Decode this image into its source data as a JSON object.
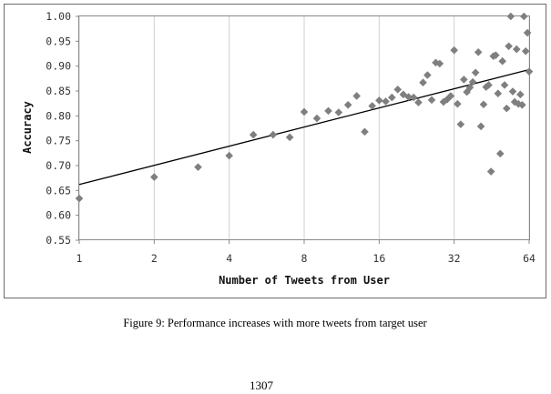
{
  "chart_data": {
    "type": "scatter",
    "title": "",
    "xlabel": "Number of Tweets from User",
    "ylabel": "Accuracy",
    "x_scale": "log2",
    "xlim": [
      1,
      64
    ],
    "ylim": [
      0.55,
      1.0
    ],
    "x_ticks": [
      "1",
      "2",
      "4",
      "8",
      "16",
      "32",
      "64"
    ],
    "x_tick_values": [
      1,
      2,
      4,
      8,
      16,
      32,
      64
    ],
    "y_ticks": [
      "0.55",
      "0.60",
      "0.65",
      "0.70",
      "0.75",
      "0.80",
      "0.85",
      "0.90",
      "0.95",
      "1.00"
    ],
    "y_tick_values": [
      0.55,
      0.6,
      0.65,
      0.7,
      0.75,
      0.8,
      0.85,
      0.9,
      0.95,
      1.0
    ],
    "grid": "vertical",
    "marker": "diamond",
    "point_color": "#7f7f7f",
    "trend_color": "#000000",
    "trendline": {
      "x": [
        1,
        64
      ],
      "y": [
        0.662,
        0.893
      ]
    },
    "points": [
      {
        "x": 1,
        "y": 0.634
      },
      {
        "x": 2,
        "y": 0.677
      },
      {
        "x": 3,
        "y": 0.697
      },
      {
        "x": 4,
        "y": 0.72
      },
      {
        "x": 5,
        "y": 0.762
      },
      {
        "x": 6,
        "y": 0.762
      },
      {
        "x": 7,
        "y": 0.757
      },
      {
        "x": 8,
        "y": 0.808
      },
      {
        "x": 9,
        "y": 0.795
      },
      {
        "x": 10,
        "y": 0.81
      },
      {
        "x": 11,
        "y": 0.807
      },
      {
        "x": 12,
        "y": 0.822
      },
      {
        "x": 13,
        "y": 0.84
      },
      {
        "x": 14,
        "y": 0.768
      },
      {
        "x": 15,
        "y": 0.82
      },
      {
        "x": 16,
        "y": 0.831
      },
      {
        "x": 17,
        "y": 0.829
      },
      {
        "x": 18,
        "y": 0.837
      },
      {
        "x": 19,
        "y": 0.853
      },
      {
        "x": 20,
        "y": 0.843
      },
      {
        "x": 21,
        "y": 0.838
      },
      {
        "x": 22,
        "y": 0.837
      },
      {
        "x": 23,
        "y": 0.827
      },
      {
        "x": 24,
        "y": 0.867
      },
      {
        "x": 25,
        "y": 0.882
      },
      {
        "x": 26,
        "y": 0.832
      },
      {
        "x": 27,
        "y": 0.907
      },
      {
        "x": 28,
        "y": 0.905
      },
      {
        "x": 29,
        "y": 0.828
      },
      {
        "x": 30,
        "y": 0.833
      },
      {
        "x": 31,
        "y": 0.84
      },
      {
        "x": 32,
        "y": 0.932
      },
      {
        "x": 33,
        "y": 0.824
      },
      {
        "x": 34,
        "y": 0.783
      },
      {
        "x": 35,
        "y": 0.873
      },
      {
        "x": 36,
        "y": 0.848
      },
      {
        "x": 37,
        "y": 0.857
      },
      {
        "x": 38,
        "y": 0.868
      },
      {
        "x": 39,
        "y": 0.887
      },
      {
        "x": 40,
        "y": 0.928
      },
      {
        "x": 41,
        "y": 0.779
      },
      {
        "x": 42,
        "y": 0.823
      },
      {
        "x": 43,
        "y": 0.858
      },
      {
        "x": 44,
        "y": 0.862
      },
      {
        "x": 45,
        "y": 0.688
      },
      {
        "x": 46,
        "y": 0.92
      },
      {
        "x": 47,
        "y": 0.922
      },
      {
        "x": 48,
        "y": 0.845
      },
      {
        "x": 49,
        "y": 0.724
      },
      {
        "x": 50,
        "y": 0.91
      },
      {
        "x": 51,
        "y": 0.862
      },
      {
        "x": 52,
        "y": 0.815
      },
      {
        "x": 53,
        "y": 0.94
      },
      {
        "x": 54,
        "y": 1.0
      },
      {
        "x": 55,
        "y": 0.849
      },
      {
        "x": 56,
        "y": 0.828
      },
      {
        "x": 57,
        "y": 0.934
      },
      {
        "x": 58,
        "y": 0.824
      },
      {
        "x": 59,
        "y": 0.843
      },
      {
        "x": 60,
        "y": 0.822
      },
      {
        "x": 61,
        "y": 1.0
      },
      {
        "x": 62,
        "y": 0.93
      },
      {
        "x": 63,
        "y": 0.967
      },
      {
        "x": 64,
        "y": 0.889
      }
    ]
  },
  "figure": {
    "caption": "Figure 9: Performance increases with more tweets from target user"
  },
  "page": {
    "number": "1307"
  }
}
